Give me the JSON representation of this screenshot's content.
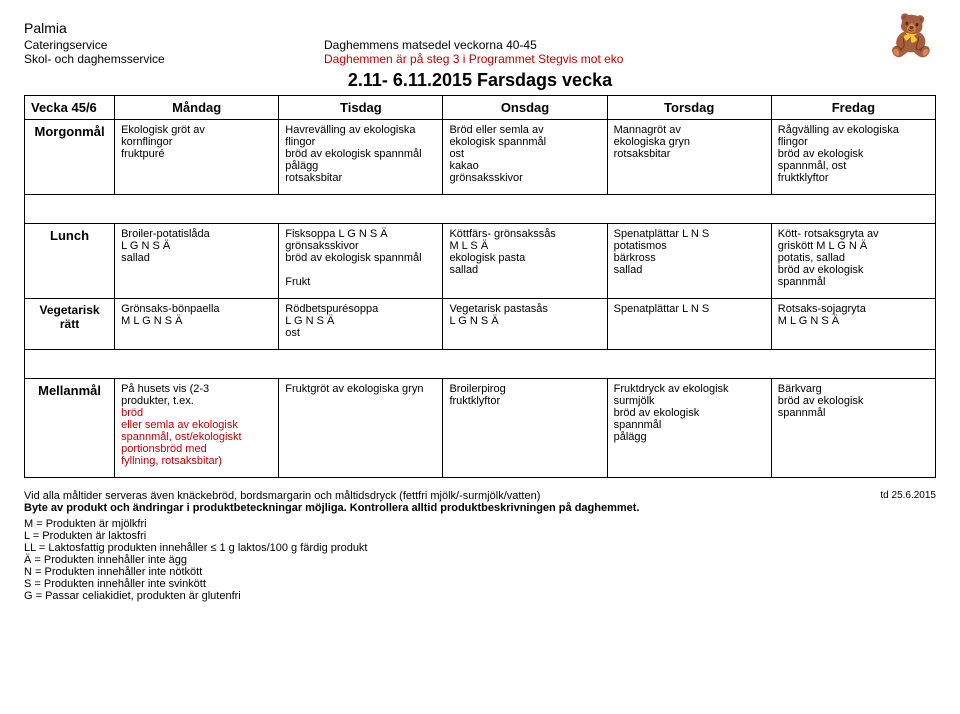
{
  "header": {
    "brand": "Palmia",
    "line1_left": "Cateringservice",
    "line1_mid": "Daghemmens matsedel veckorna 40-45",
    "line2_left": "Skol- och daghemsservice",
    "line2_mid": "Daghemmen är på steg 3 i Programmet Stegvis mot eko",
    "big_title": "2.11- 6.11.2015 Farsdags vecka"
  },
  "columns": {
    "week": "Vecka 45/6",
    "d1": "Måndag",
    "d2": "Tisdag",
    "d3": "Onsdag",
    "d4": "Torsdag",
    "d5": "Fredag"
  },
  "rows": {
    "r1_label": "Morgonmål",
    "r2_label": "Lunch",
    "r3_label_1": "Vegetarisk",
    "r3_label_2": "rätt",
    "r4_label": "Mellanmål"
  },
  "colors": {
    "red": "#c00000"
  },
  "morgon": {
    "d1": [
      "Ekologisk gröt av",
      "kornflingor",
      "fruktpuré"
    ],
    "d2": [
      "Havrevälling av ekologiska",
      "flingor",
      "bröd av ekologisk spannmål",
      "pålägg",
      "rotsaksbitar"
    ],
    "d3": [
      "Bröd eller semla av",
      "ekologisk spannmål",
      "ost",
      "kakao",
      "grönsaksskivor"
    ],
    "d4": [
      "Mannagröt av",
      "ekologiska gryn",
      "rotsaksbitar"
    ],
    "d5": [
      "Rågvälling av ekologiska",
      "flingor",
      "bröd av ekologisk",
      "spannmål, ost",
      "fruktklyftor"
    ]
  },
  "lunch": {
    "d1": [
      "Broiler-potatislåda",
      "L G N S Ä",
      "sallad"
    ],
    "d2": [
      "Fisksoppa L G N S Ä",
      "grönsaksskivor",
      "bröd av ekologisk spannmål",
      "",
      "Frukt"
    ],
    "d3": [
      "Köttfärs- grönsakssås",
      "M L S Ä",
      "ekologisk pasta",
      "sallad"
    ],
    "d4": [
      "Spenatplättar L N S",
      "potatismos",
      "bärkross",
      "sallad"
    ],
    "d5": [
      "Kött- rotsaksgryta av",
      "griskött M L G N Ä",
      "potatis, sallad",
      "bröd av ekologisk",
      "spannmål"
    ]
  },
  "veg": {
    "d1": [
      "Grönsaks-bönpaella",
      "M L G N S Ä"
    ],
    "d2": [
      "Rödbetspurésoppa",
      "L G N S Ä",
      "ost"
    ],
    "d3": [
      "Vegetarisk pastasås",
      "L G N S Ä"
    ],
    "d4": [
      "Spenatplättar L N S"
    ],
    "d5": [
      "Rotsaks-sojagryta",
      "M L G N S Ä"
    ]
  },
  "mellan": {
    "d1": {
      "plain": [
        "På husets vis (2-3",
        "produkter, t.ex. "
      ],
      "red": [
        "bröd",
        "eller semla av ekologisk",
        "spannmål, ost/ekologiskt",
        "portionsbröd med",
        "fyllning, rotsaksbitar)"
      ]
    },
    "d2": [
      "Fruktgröt av ekologiska gryn"
    ],
    "d3": [
      "Broilerpirog",
      "fruktklyftor"
    ],
    "d4": [
      "Fruktdryck av ekologisk",
      "surmjölk",
      "bröd av ekologisk",
      "spannmål",
      "pålägg"
    ],
    "d5": [
      "Bärkvarg",
      "bröd av ekologisk",
      "spannmål"
    ]
  },
  "footer": {
    "line1": "Vid alla måltider serveras även knäckebröd, bordsmargarin och måltidsdryck (fettfri mjölk/-surmjölk/vatten)",
    "date": "td 25.6.2015",
    "line2": "Byte av produkt och ändringar i produktbeteckningar möjliga. Kontrollera alltid produktbeskrivningen på daghemmet.",
    "legend": [
      "M = Produkten är mjölkfri",
      "L = Produkten är laktosfri",
      "LL = Laktosfattig produkten innehåller ≤ 1 g laktos/100 g färdig produkt",
      "Ä = Produkten innehåller inte ägg",
      "N = Produkten innehåller inte nötkött",
      "S = Produkten innehåller inte svinkött",
      "G = Passar celiakidiet, produkten är glutenfri"
    ]
  }
}
